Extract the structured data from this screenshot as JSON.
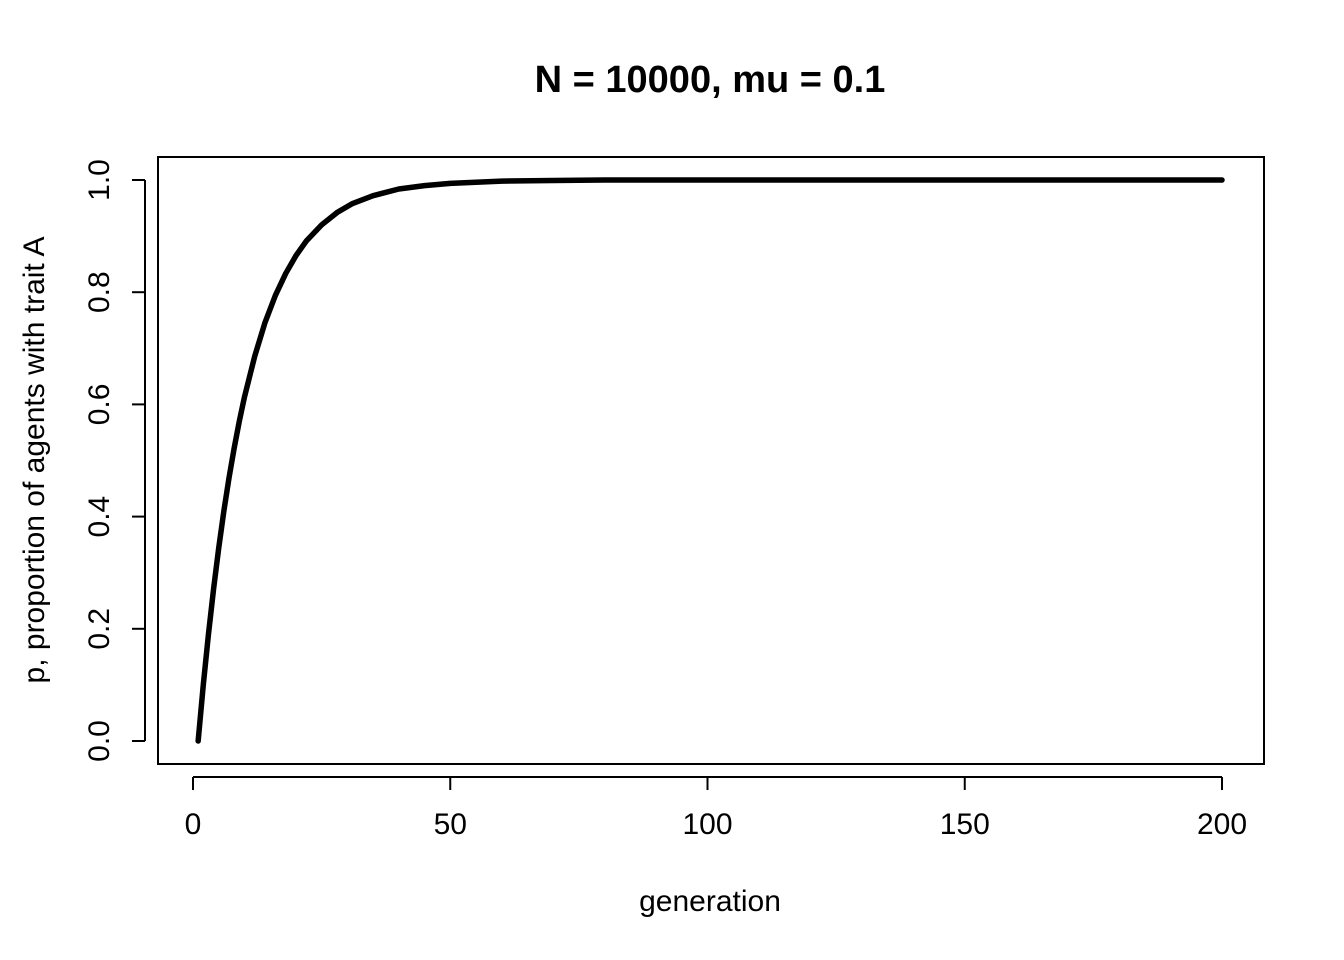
{
  "chart_data": {
    "type": "line",
    "title": "N = 10000, mu = 0.1",
    "xlabel": "generation",
    "ylabel": "p, proportion of agents with trait A",
    "xlim": [
      1,
      200
    ],
    "ylim": [
      0,
      1
    ],
    "x_ticks": [
      "0",
      "50",
      "100",
      "150",
      "200"
    ],
    "y_ticks": [
      "0.0",
      "0.2",
      "0.4",
      "0.6",
      "0.8",
      "1.0"
    ],
    "grid": false,
    "legend": "none",
    "series": [
      {
        "color": "#000000",
        "x": [
          1,
          2,
          3,
          4,
          5,
          6,
          7,
          8,
          9,
          10,
          12,
          14,
          16,
          18,
          20,
          22,
          25,
          28,
          31,
          35,
          40,
          45,
          50,
          60,
          70,
          80,
          100,
          150,
          200
        ],
        "y": [
          0.0,
          0.1,
          0.19,
          0.271,
          0.344,
          0.41,
          0.469,
          0.522,
          0.57,
          0.613,
          0.686,
          0.746,
          0.794,
          0.833,
          0.865,
          0.891,
          0.92,
          0.942,
          0.958,
          0.972,
          0.984,
          0.99,
          0.994,
          0.998,
          0.999,
          1.0,
          1.0,
          1.0,
          1.0
        ]
      }
    ]
  }
}
